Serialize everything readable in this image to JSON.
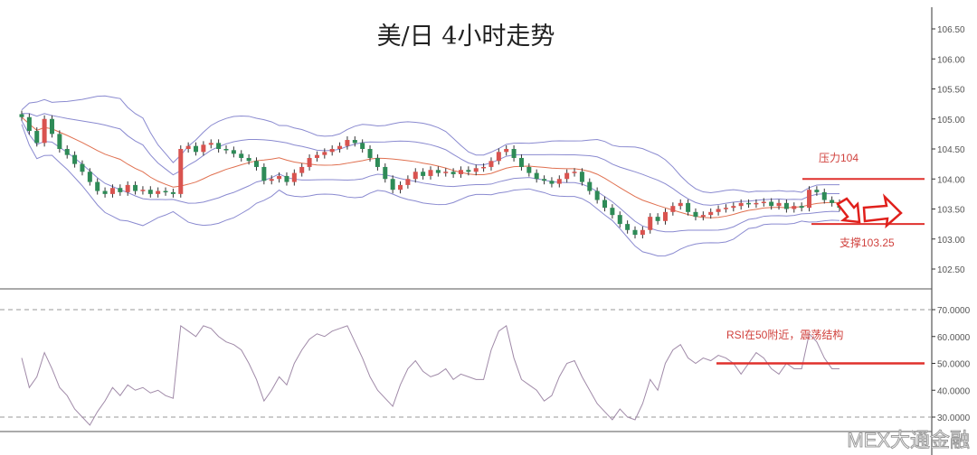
{
  "chart_data": [
    {
      "type": "candlestick",
      "title": "美/日 4小时走势",
      "ylim": [
        102.25,
        106.75
      ],
      "yticks": [
        "106.50",
        "106.00",
        "105.50",
        "105.00",
        "104.50",
        "104.00",
        "103.50",
        "103.00",
        "102.50"
      ],
      "overlays": [
        "Bollinger Bands",
        "Moving Average"
      ],
      "closes": [
        105.03,
        104.8,
        104.6,
        105.0,
        104.75,
        104.5,
        104.4,
        104.25,
        104.12,
        103.95,
        103.8,
        103.75,
        103.85,
        103.78,
        103.9,
        103.8,
        103.82,
        103.75,
        103.8,
        103.78,
        103.75,
        104.5,
        104.55,
        104.45,
        104.57,
        104.6,
        104.5,
        104.48,
        104.42,
        104.35,
        104.3,
        104.2,
        103.97,
        104.0,
        104.05,
        103.95,
        104.1,
        104.2,
        104.35,
        104.4,
        104.45,
        104.5,
        104.55,
        104.65,
        104.6,
        104.5,
        104.35,
        104.2,
        104.0,
        103.82,
        103.9,
        104.0,
        104.12,
        104.05,
        104.15,
        104.1,
        104.12,
        104.08,
        104.15,
        104.12,
        104.18,
        104.2,
        104.3,
        104.45,
        104.5,
        104.35,
        104.2,
        104.1,
        104.0,
        103.97,
        103.92,
        104.0,
        104.1,
        104.12,
        103.95,
        103.8,
        103.65,
        103.52,
        103.4,
        103.25,
        103.15,
        103.07,
        103.15,
        103.37,
        103.3,
        103.45,
        103.55,
        103.6,
        103.45,
        103.37,
        103.4,
        103.45,
        103.5,
        103.52,
        103.55,
        103.6,
        103.58,
        103.6,
        103.62,
        103.55,
        103.6,
        103.5,
        103.55,
        103.52,
        103.82,
        103.78,
        103.65,
        103.6,
        103.52
      ],
      "annotations": {
        "resistance_label": "压力104",
        "resistance_level": 104.0,
        "support_label": "支撑103.25",
        "support_level": 103.25
      }
    },
    {
      "type": "line",
      "name": "RSI",
      "ylim": [
        25,
        75
      ],
      "yticks": [
        "70.0000",
        "60.0000",
        "50.0000",
        "40.0000",
        "30.0000"
      ],
      "dashed_levels": [
        70,
        30
      ],
      "values": [
        52,
        41,
        45,
        54,
        48,
        41,
        38,
        33,
        30,
        27,
        32,
        36,
        41,
        38,
        42,
        40,
        41,
        39,
        40,
        38,
        37,
        64,
        62,
        60,
        64,
        63,
        60,
        58,
        57,
        55,
        50,
        44,
        36,
        40,
        45,
        42,
        50,
        55,
        59,
        61,
        60,
        62,
        63,
        64,
        58,
        52,
        45,
        40,
        37,
        34,
        42,
        48,
        51,
        47,
        45,
        46,
        48,
        44,
        46,
        45,
        44,
        44,
        55,
        62,
        64,
        52,
        44,
        42,
        40,
        36,
        38,
        45,
        50,
        51,
        45,
        40,
        35,
        32,
        29,
        33,
        30,
        29,
        35,
        44,
        40,
        50,
        55,
        57,
        52,
        50,
        52,
        51,
        53,
        52,
        50,
        46,
        50,
        54,
        52,
        48,
        46,
        50,
        48,
        48,
        61,
        58,
        52,
        48,
        48
      ],
      "annotation_label": "RSI在50附近，震荡结构",
      "annotation_level": 50
    }
  ],
  "colors": {
    "up": "#d9534f",
    "down": "#2e8b57",
    "band": "#8a8ad0",
    "ma": "#e07050",
    "rsi": "#a08aa8",
    "annotation": "#e0302c"
  },
  "watermark": "MEX",
  "logo": "MEX大通金融"
}
